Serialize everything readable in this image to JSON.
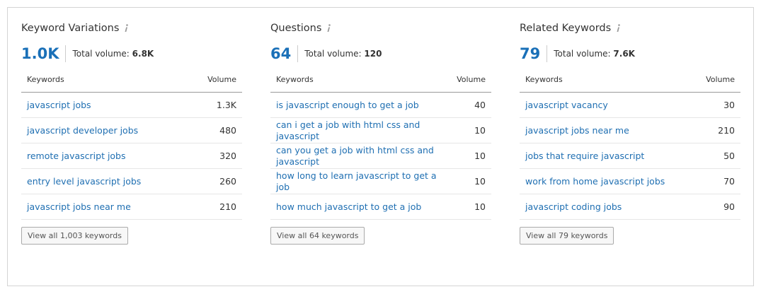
{
  "panels": [
    {
      "title": "Keyword Variations",
      "count": "1.0K",
      "volume_label": "Total volume:",
      "volume": "6.8K",
      "columns": [
        "Keywords",
        "Volume"
      ],
      "rows": [
        [
          "javascript jobs",
          "1.3K"
        ],
        [
          "javascript developer jobs",
          480
        ],
        [
          "remote javascript jobs",
          320
        ],
        [
          "entry level javascript jobs",
          260
        ],
        [
          "javascript jobs near me",
          210
        ]
      ],
      "button": "View all 1,003 keywords"
    },
    {
      "title": "Questions",
      "count": 64,
      "volume_label": "Total volume:",
      "volume": 120,
      "columns": [
        "Keywords",
        "Volume"
      ],
      "rows": [
        [
          "is javascript enough to get a job",
          40
        ],
        [
          "can i get a job with html css and javascript",
          10
        ],
        [
          "can you get a job with html css and javascript",
          10
        ],
        [
          "how long to learn javascript to get a job",
          10
        ],
        [
          "how much javascript to get a job",
          10
        ]
      ],
      "button": "View all 64 keywords"
    },
    {
      "title": "Related Keywords",
      "count": 79,
      "volume_label": "Total volume:",
      "volume": "7.6K",
      "columns": [
        "Keywords",
        "Volume"
      ],
      "rows": [
        [
          "javascript vacancy",
          30
        ],
        [
          "javascript jobs near me",
          210
        ],
        [
          "jobs that require javascript",
          50
        ],
        [
          "work from home javascript jobs",
          70
        ],
        [
          "javascript coding jobs",
          90
        ]
      ],
      "button": "View all 79 keywords"
    }
  ]
}
